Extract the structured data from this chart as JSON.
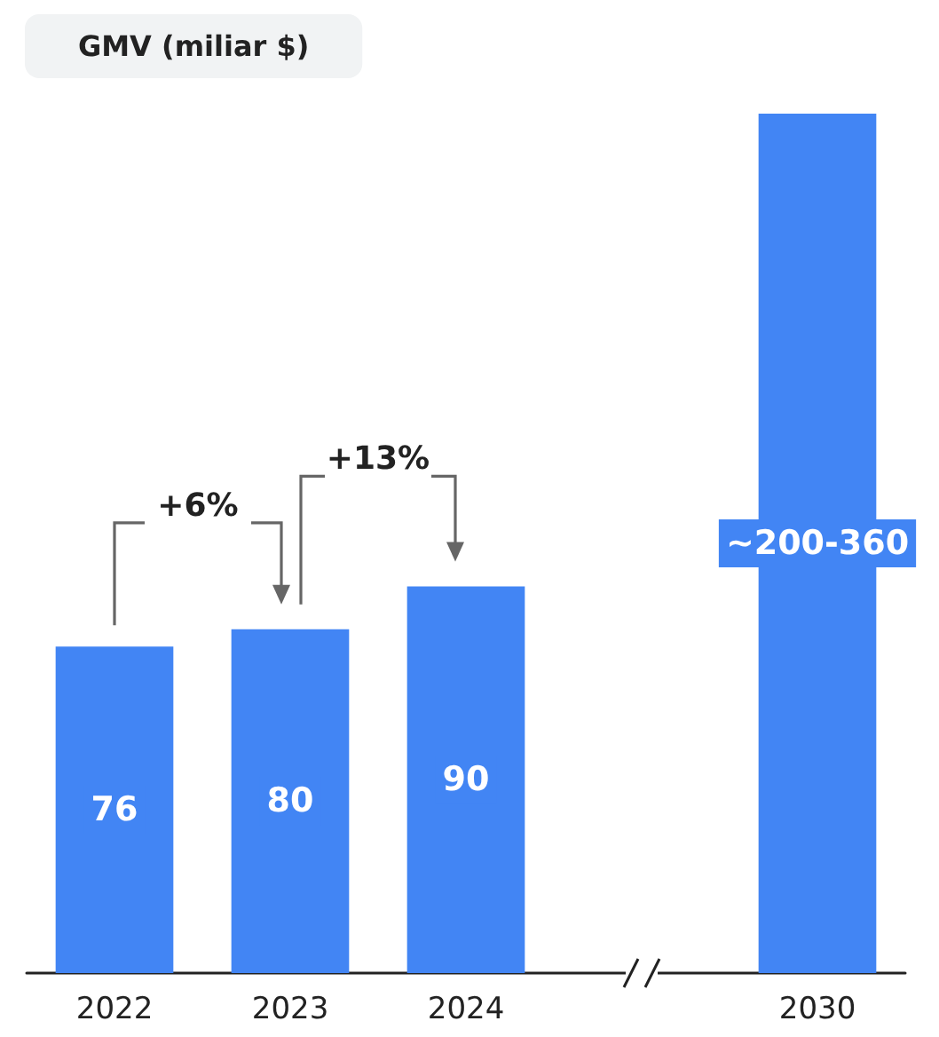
{
  "chart_data": {
    "type": "bar",
    "title": "GMV (miliar $)",
    "categories": [
      "2022",
      "2023",
      "2024",
      null,
      "2030"
    ],
    "values": [
      76,
      80,
      90,
      null,
      200
    ],
    "value_labels": [
      "76",
      "80",
      "90",
      null,
      "~200-360"
    ],
    "color": "#4285f4",
    "annotations": [
      "+6%",
      "+13%"
    ]
  }
}
